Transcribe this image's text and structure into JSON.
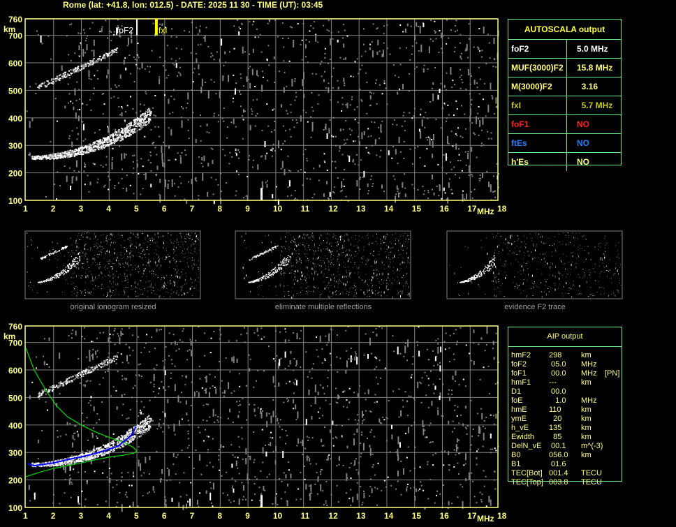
{
  "header": {
    "title": "Rome (lat: +41.8, lon: 012.5) - DATE: 2025 11 30 - TIME (UT): 03:45"
  },
  "colors": {
    "axis": "#ffff80",
    "grid": "#808080",
    "table_border": "#66ee88",
    "profile": "#00dd00",
    "trace": "#0000ff",
    "foF1": "#ff2020",
    "ftEs": "#2080ff",
    "fxI": "#c8c820"
  },
  "chart_data": [
    {
      "type": "scatter",
      "title": "",
      "xlabel": "MHz",
      "ylabel": "km",
      "xlim": [
        1,
        18
      ],
      "ylim": [
        100,
        760
      ],
      "x_ticks": [
        "1",
        "2",
        "3",
        "4",
        "5",
        "6",
        "7",
        "8",
        "9",
        "10",
        "11",
        "12",
        "13",
        "14",
        "15",
        "16",
        "17",
        "18"
      ],
      "y_ticks": [
        "100",
        "200",
        "300",
        "400",
        "500",
        "600",
        "700",
        "760"
      ],
      "grid": true,
      "markers": [
        {
          "label": "foF2",
          "x": 5.0
        },
        {
          "label": "fxI",
          "x": 5.7
        }
      ]
    },
    {
      "type": "line",
      "title": "",
      "xlabel": "MHz",
      "ylabel": "km",
      "xlim": [
        1,
        18
      ],
      "ylim": [
        100,
        760
      ],
      "x_ticks": [
        "1",
        "2",
        "3",
        "4",
        "5",
        "6",
        "7",
        "8",
        "9",
        "10",
        "11",
        "12",
        "13",
        "14",
        "15",
        "16",
        "17",
        "18"
      ],
      "y_ticks": [
        "100",
        "200",
        "300",
        "400",
        "500",
        "600",
        "700",
        "760"
      ],
      "grid": true,
      "series": [
        {
          "color": "#00dd00",
          "points": [
            [
              1.0,
              680
            ],
            [
              1.3,
              600
            ],
            [
              1.7,
              530
            ],
            [
              2.1,
              470
            ],
            [
              2.5,
              430
            ],
            [
              3.0,
              400
            ],
            [
              3.5,
              375
            ],
            [
              4.0,
              355
            ],
            [
              4.5,
              338
            ],
            [
              4.85,
              320
            ],
            [
              5.0,
              305
            ],
            [
              4.9,
              298
            ],
            [
              4.5,
              290
            ],
            [
              4.0,
              283
            ],
            [
              3.5,
              273
            ],
            [
              3.0,
              262
            ],
            [
              2.5,
              252
            ],
            [
              2.0,
              242
            ],
            [
              1.5,
              228
            ],
            [
              1.0,
              212
            ]
          ]
        },
        {
          "color": "#0000ff",
          "points": [
            [
              1.1,
              258
            ],
            [
              1.3,
              252
            ],
            [
              1.6,
              256
            ],
            [
              2.0,
              262
            ],
            [
              2.5,
              274
            ],
            [
              3.0,
              284
            ],
            [
              3.5,
              296
            ],
            [
              4.0,
              312
            ],
            [
              4.3,
              322
            ],
            [
              4.6,
              345
            ],
            [
              4.85,
              368
            ],
            [
              4.95,
              392
            ]
          ]
        }
      ]
    }
  ],
  "thumbnails": [
    {
      "caption": "original ionogram resized"
    },
    {
      "caption": "eliminate multiple reflections"
    },
    {
      "caption": "evidence F2 trace"
    }
  ],
  "autoscala": {
    "title": "AUTOSCALA output",
    "rows": [
      {
        "label": "foF2",
        "value": "5.0 MHz",
        "color": "#ffffff"
      },
      {
        "label": "MUF(3000)F2",
        "value": "15.8 MHz",
        "color": "#ffff80"
      },
      {
        "label": "M(3000)F2",
        "value": "  3.16",
        "color": "#ffff80"
      },
      {
        "label": "fxI",
        "value": "  5.7 MHz",
        "color": "#c8c820"
      },
      {
        "label": "foF1",
        "value": "NO",
        "color": "#ff2020"
      },
      {
        "label": "ftEs",
        "value": "NO",
        "color": "#2080ff"
      },
      {
        "label": "h'Es",
        "value": "NO",
        "color": "#ffff80"
      }
    ]
  },
  "aip": {
    "title": "AIP output",
    "rows": [
      {
        "name": "hmF2",
        "value": "298",
        "unit": "km",
        "note": ""
      },
      {
        "name": "foF2",
        "value": " 05.0",
        "unit": "MHz",
        "note": ""
      },
      {
        "name": "foF1",
        "value": " 00.0",
        "unit": "MHz",
        "note": "[PN]"
      },
      {
        "name": "hmF1",
        "value": "---",
        "unit": "km",
        "note": ""
      },
      {
        "name": "D1",
        "value": " 00.0",
        "unit": "",
        "note": ""
      },
      {
        "name": "foE",
        "value": "   1.0",
        "unit": "MHz",
        "note": ""
      },
      {
        "name": "hmE",
        "value": "110",
        "unit": "km",
        "note": ""
      },
      {
        "name": "ymE",
        "value": "  20",
        "unit": "km",
        "note": ""
      },
      {
        "name": "h_vE",
        "value": "135",
        "unit": "km",
        "note": ""
      },
      {
        "name": "Ewidth",
        "value": "  85",
        "unit": "km",
        "note": ""
      },
      {
        "name": "DelN_vE",
        "value": " 00.1",
        "unit": "m^(-3)",
        "note": ""
      },
      {
        "name": "B0",
        "value": "056.0",
        "unit": "km",
        "note": ""
      },
      {
        "name": "B1",
        "value": " 01.6",
        "unit": "",
        "note": ""
      },
      {
        "name": "TEC[Bot]",
        "value": "001.4",
        "unit": "TECU",
        "note": ""
      },
      {
        "name": "TEC[Top]",
        "value": "003.8",
        "unit": "TECU",
        "note": ""
      }
    ]
  }
}
